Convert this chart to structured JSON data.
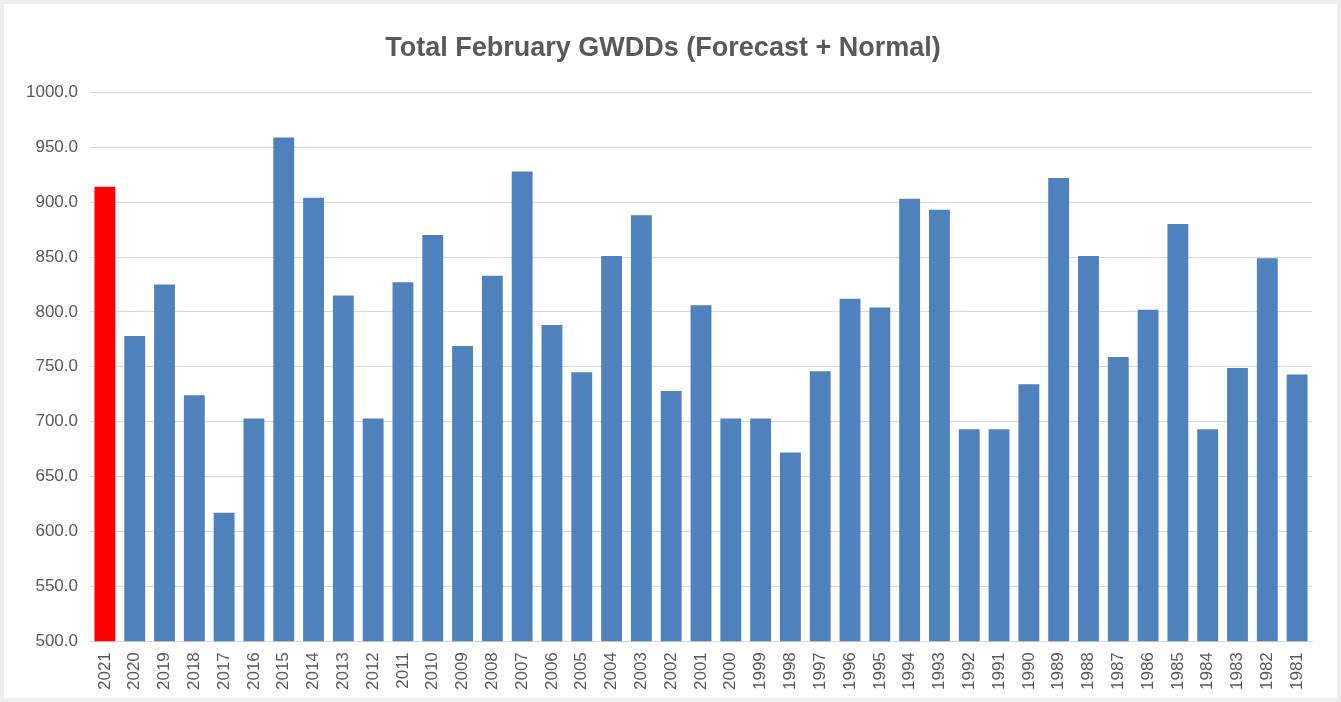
{
  "chart_data": {
    "type": "bar",
    "title": "Total February GWDDs (Forecast + Normal)",
    "categories": [
      "2021",
      "2020",
      "2019",
      "2018",
      "2017",
      "2016",
      "2015",
      "2014",
      "2013",
      "2012",
      "2011",
      "2010",
      "2009",
      "2008",
      "2007",
      "2006",
      "2005",
      "2004",
      "2003",
      "2002",
      "2001",
      "2000",
      "1999",
      "1998",
      "1997",
      "1996",
      "1995",
      "1994",
      "1993",
      "1992",
      "1991",
      "1990",
      "1989",
      "1988",
      "1987",
      "1986",
      "1985",
      "1984",
      "1983",
      "1982",
      "1981"
    ],
    "values": [
      914,
      778,
      825,
      724,
      617,
      703,
      959,
      904,
      815,
      703,
      827,
      870,
      769,
      833,
      928,
      788,
      745,
      851,
      888,
      728,
      806,
      703,
      703,
      672,
      746,
      812,
      804,
      903,
      893,
      693,
      693,
      734,
      922,
      851,
      759,
      802,
      880,
      693,
      749,
      849,
      743
    ],
    "colors": [
      "#ff0000",
      "#4f81bd",
      "#4f81bd",
      "#4f81bd",
      "#4f81bd",
      "#4f81bd",
      "#4f81bd",
      "#4f81bd",
      "#4f81bd",
      "#4f81bd",
      "#4f81bd",
      "#4f81bd",
      "#4f81bd",
      "#4f81bd",
      "#4f81bd",
      "#4f81bd",
      "#4f81bd",
      "#4f81bd",
      "#4f81bd",
      "#4f81bd",
      "#4f81bd",
      "#4f81bd",
      "#4f81bd",
      "#4f81bd",
      "#4f81bd",
      "#4f81bd",
      "#4f81bd",
      "#4f81bd",
      "#4f81bd",
      "#4f81bd",
      "#4f81bd",
      "#4f81bd",
      "#4f81bd",
      "#4f81bd",
      "#4f81bd",
      "#4f81bd",
      "#4f81bd",
      "#4f81bd",
      "#4f81bd",
      "#4f81bd",
      "#4f81bd"
    ],
    "ylim": [
      500,
      1000
    ],
    "yticks": [
      {
        "value": 500,
        "label": "500.0"
      },
      {
        "value": 550,
        "label": "550.0"
      },
      {
        "value": 600,
        "label": "600.0"
      },
      {
        "value": 650,
        "label": "650.0"
      },
      {
        "value": 700,
        "label": "700.0"
      },
      {
        "value": 750,
        "label": "750.0"
      },
      {
        "value": 800,
        "label": "800.0"
      },
      {
        "value": 850,
        "label": "850.0"
      },
      {
        "value": 900,
        "label": "900.0"
      },
      {
        "value": 950,
        "label": "950.0"
      },
      {
        "value": 1000,
        "label": "1000.0"
      }
    ],
    "grid": "y"
  }
}
